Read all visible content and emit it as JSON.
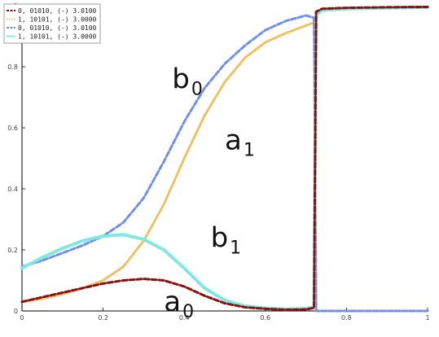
{
  "chart_data": {
    "type": "line",
    "title": "",
    "xlabel": "",
    "ylabel": "",
    "xlim": [
      0,
      1
    ],
    "ylim": [
      0,
      1
    ],
    "x_ticks": [
      "0",
      "0.2",
      "0.4",
      "0.6",
      "0.8",
      "1"
    ],
    "y_ticks": [
      "0",
      "0.2",
      "0.4",
      "0.6",
      "0.8",
      "1"
    ],
    "grid": false,
    "legend_position": "top-left",
    "series": [
      {
        "name": "0, 01010, (-) 3.0100",
        "color": "#8b1010",
        "style": "dashed",
        "points": [
          [
            0,
            0.03
          ],
          [
            0.05,
            0.045
          ],
          [
            0.1,
            0.06
          ],
          [
            0.15,
            0.075
          ],
          [
            0.2,
            0.09
          ],
          [
            0.25,
            0.1
          ],
          [
            0.3,
            0.105
          ],
          [
            0.35,
            0.1
          ],
          [
            0.4,
            0.08
          ],
          [
            0.45,
            0.05
          ],
          [
            0.5,
            0.025
          ],
          [
            0.55,
            0.012
          ],
          [
            0.6,
            0.007
          ],
          [
            0.65,
            0.004
          ],
          [
            0.7,
            0.005
          ],
          [
            0.72,
            0.01
          ],
          [
            0.725,
            0.98
          ],
          [
            0.74,
            0.99
          ],
          [
            0.8,
            0.993
          ],
          [
            0.9,
            0.995
          ],
          [
            1,
            0.996
          ]
        ]
      },
      {
        "name": "1, 10101, (-) 3.0000",
        "color": "#f0c060",
        "style": "dotted",
        "points": [
          [
            0,
            0.03
          ],
          [
            0.05,
            0.04
          ],
          [
            0.1,
            0.055
          ],
          [
            0.15,
            0.075
          ],
          [
            0.2,
            0.1
          ],
          [
            0.25,
            0.145
          ],
          [
            0.3,
            0.23
          ],
          [
            0.35,
            0.35
          ],
          [
            0.4,
            0.5
          ],
          [
            0.45,
            0.64
          ],
          [
            0.5,
            0.75
          ],
          [
            0.55,
            0.83
          ],
          [
            0.6,
            0.88
          ],
          [
            0.65,
            0.91
          ],
          [
            0.7,
            0.935
          ],
          [
            0.72,
            0.945
          ],
          [
            0.725,
            0.0
          ],
          [
            0.8,
            0.0
          ],
          [
            0.9,
            0.0
          ],
          [
            1,
            0.0
          ]
        ]
      },
      {
        "name": "0, 01010, (-) 3.0100",
        "color": "#6f8fee",
        "style": "dashed",
        "points": [
          [
            0,
            0.145
          ],
          [
            0.05,
            0.165
          ],
          [
            0.1,
            0.19
          ],
          [
            0.15,
            0.215
          ],
          [
            0.2,
            0.245
          ],
          [
            0.25,
            0.29
          ],
          [
            0.3,
            0.37
          ],
          [
            0.35,
            0.49
          ],
          [
            0.4,
            0.62
          ],
          [
            0.45,
            0.73
          ],
          [
            0.5,
            0.81
          ],
          [
            0.55,
            0.87
          ],
          [
            0.6,
            0.92
          ],
          [
            0.65,
            0.95
          ],
          [
            0.7,
            0.968
          ],
          [
            0.72,
            0.96
          ],
          [
            0.725,
            0.0
          ],
          [
            0.8,
            0.0
          ],
          [
            0.9,
            0.0
          ],
          [
            1,
            0.0
          ]
        ]
      },
      {
        "name": "1, 10101, (-) 3.0000",
        "color": "#7fe8e0",
        "style": "solid",
        "points": [
          [
            0,
            0.14
          ],
          [
            0.05,
            0.175
          ],
          [
            0.1,
            0.205
          ],
          [
            0.15,
            0.23
          ],
          [
            0.2,
            0.245
          ],
          [
            0.25,
            0.25
          ],
          [
            0.3,
            0.235
          ],
          [
            0.35,
            0.2
          ],
          [
            0.4,
            0.14
          ],
          [
            0.45,
            0.075
          ],
          [
            0.5,
            0.035
          ],
          [
            0.55,
            0.016
          ],
          [
            0.6,
            0.009
          ],
          [
            0.65,
            0.006
          ],
          [
            0.7,
            0.008
          ],
          [
            0.72,
            0.012
          ],
          [
            0.725,
            0.97
          ],
          [
            0.74,
            0.985
          ],
          [
            0.8,
            0.99
          ],
          [
            0.9,
            0.993
          ],
          [
            1,
            0.995
          ]
        ]
      }
    ],
    "annotations": [
      {
        "base": "b",
        "sub": "0",
        "x": 0.37,
        "y": 0.73
      },
      {
        "base": "a",
        "sub": "1",
        "x": 0.5,
        "y": 0.53
      },
      {
        "base": "b",
        "sub": "1",
        "x": 0.465,
        "y": 0.21
      },
      {
        "base": "a",
        "sub": "0",
        "x": 0.35,
        "y": 0.0
      }
    ]
  }
}
